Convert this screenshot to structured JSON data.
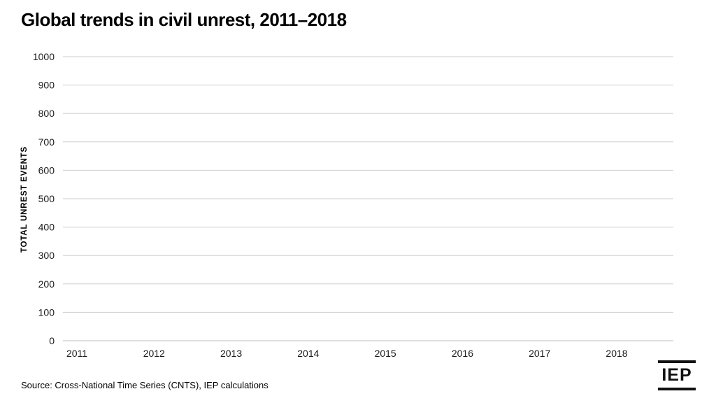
{
  "header": {
    "title": "Global trends in civil unrest, 2011–2018"
  },
  "chart_data": {
    "type": "line",
    "title": "Global trends in civil unrest, 2011–2018",
    "xlabel": "",
    "ylabel": "TOTAL UNREST EVENTS",
    "x_categories": [
      "2011",
      "2012",
      "2013",
      "2014",
      "2015",
      "2016",
      "2017",
      "2018"
    ],
    "y_ticks": [
      0,
      100,
      200,
      300,
      400,
      500,
      600,
      700,
      800,
      900,
      1000
    ],
    "ylim": [
      0,
      1000
    ],
    "grid": true,
    "legend_position": "none",
    "series": []
  },
  "footer": {
    "source": "Source: Cross-National Time Series (CNTS), IEP calculations",
    "logo_text": "IEP"
  },
  "colors": {
    "background": "#ffffff",
    "title_text": "#000000",
    "tick_text": "#1a1a1a",
    "gridline": "#cdcdcd",
    "zero_line": "#bdbdbd",
    "logo": "#111111"
  }
}
